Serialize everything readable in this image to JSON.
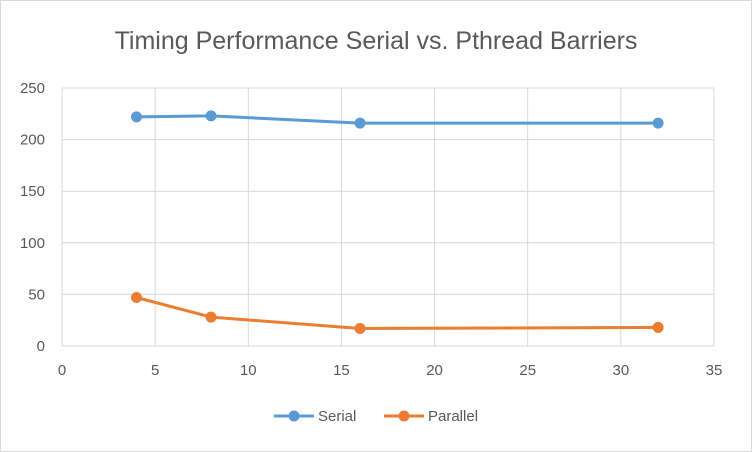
{
  "chart_data": {
    "type": "line",
    "title": "Timing Performance Serial vs. Pthread Barriers",
    "xlabel": "",
    "ylabel": "",
    "xlim": [
      0,
      35
    ],
    "ylim": [
      0,
      250
    ],
    "x_ticks": [
      "0",
      "5",
      "10",
      "15",
      "20",
      "25",
      "30",
      "35"
    ],
    "y_ticks": [
      "0",
      "50",
      "100",
      "150",
      "200",
      "250"
    ],
    "grid": true,
    "legend": "bottom",
    "x": [
      4,
      8,
      16,
      32
    ],
    "series": [
      {
        "name": "Serial",
        "color": "#5b9bd5",
        "values": [
          222,
          223,
          216,
          216
        ]
      },
      {
        "name": "Parallel",
        "color": "#ed7d31",
        "values": [
          47,
          28,
          17,
          18
        ]
      }
    ]
  }
}
